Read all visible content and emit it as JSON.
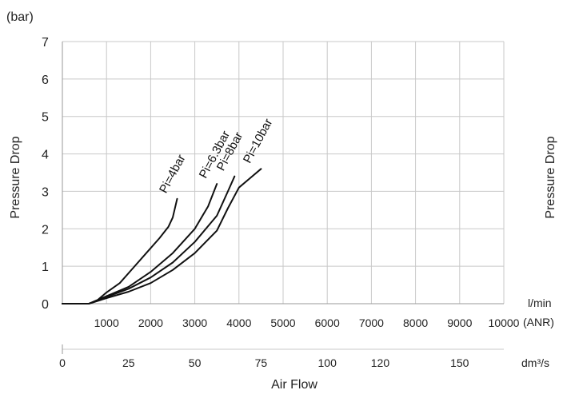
{
  "chart_data": {
    "type": "line",
    "y_unit_label": "(bar)",
    "ylabel": "Pressure Drop",
    "ylabel_right": "Pressure Drop",
    "xlabel": "Air Flow",
    "x_unit_top": "l/min",
    "x_unit_anr": "(ANR)",
    "x_unit_bottom": "dm³/s",
    "ylim": [
      0,
      7
    ],
    "xlim": [
      0,
      10000
    ],
    "y_ticks": [
      "0",
      "1",
      "2",
      "3",
      "4",
      "5",
      "6",
      "7"
    ],
    "x_ticks": [
      "1000",
      "2000",
      "3000",
      "4000",
      "5000",
      "6000",
      "7000",
      "8000",
      "9000",
      "10000"
    ],
    "secondary_x_ticks": [
      "0",
      "25",
      "50",
      "75",
      "100",
      "120",
      "150"
    ],
    "grid": true,
    "series": [
      {
        "name": "Pi=4bar",
        "x": [
          0,
          600,
          800,
          1000,
          1300,
          1600,
          1900,
          2200,
          2400,
          2500,
          2600
        ],
        "y": [
          0,
          0,
          0.1,
          0.3,
          0.55,
          0.95,
          1.35,
          1.75,
          2.05,
          2.3,
          2.8
        ]
      },
      {
        "name": "Pi=6.3bar",
        "x": [
          0,
          600,
          1000,
          1500,
          2000,
          2500,
          3000,
          3300,
          3500
        ],
        "y": [
          0,
          0,
          0.2,
          0.45,
          0.85,
          1.35,
          2.0,
          2.6,
          3.2
        ]
      },
      {
        "name": "Pi=8bar",
        "x": [
          0,
          600,
          1000,
          1500,
          2000,
          2500,
          3000,
          3500,
          3750,
          3900
        ],
        "y": [
          0,
          0,
          0.18,
          0.4,
          0.7,
          1.1,
          1.65,
          2.35,
          3.0,
          3.4
        ]
      },
      {
        "name": "Pi=10bar",
        "x": [
          0,
          600,
          1000,
          1500,
          2000,
          2500,
          3000,
          3500,
          3750,
          4000,
          4250,
          4500
        ],
        "y": [
          0,
          0,
          0.15,
          0.32,
          0.55,
          0.9,
          1.35,
          1.95,
          2.55,
          3.1,
          3.35,
          3.6
        ]
      }
    ]
  }
}
